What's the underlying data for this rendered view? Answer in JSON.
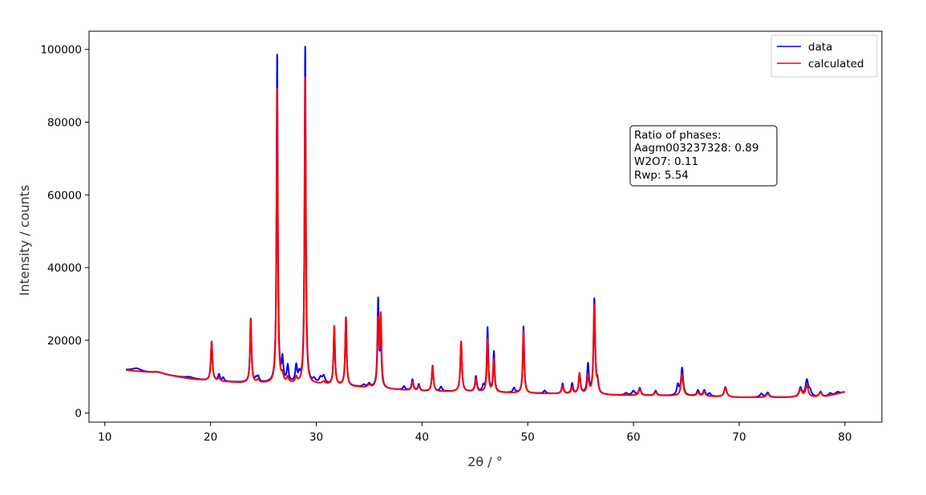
{
  "chart_data": {
    "type": "line",
    "xlabel": "2θ / °",
    "ylabel": "Intensity / counts",
    "xlim": [
      8.5,
      83.5
    ],
    "ylim": [
      -2500,
      105000
    ],
    "xticks": [
      10,
      20,
      30,
      40,
      50,
      60,
      70,
      80
    ],
    "yticks": [
      0,
      20000,
      40000,
      60000,
      80000,
      100000
    ],
    "grid": false,
    "legend": {
      "placement": "top-right"
    },
    "annotation": {
      "placement": "upper-right",
      "lines": [
        "Ratio of phases:",
        "Aagm003237328: 0.89",
        "W2O7: 0.11",
        "Rwp: 5.54"
      ]
    },
    "series": [
      {
        "name": "data",
        "color": "#0000ff",
        "background": [
          [
            12,
            11800
          ],
          [
            15,
            10800
          ],
          [
            18,
            9500
          ],
          [
            20,
            8800
          ],
          [
            23,
            8400
          ],
          [
            26,
            8200
          ],
          [
            30,
            8000
          ],
          [
            33,
            7400
          ],
          [
            36,
            6700
          ],
          [
            40,
            6000
          ],
          [
            45,
            5800
          ],
          [
            50,
            5400
          ],
          [
            55,
            5200
          ],
          [
            58,
            4900
          ],
          [
            62,
            4800
          ],
          [
            66,
            4700
          ],
          [
            70,
            4300
          ],
          [
            74,
            4300
          ],
          [
            78,
            4400
          ],
          [
            80,
            5800
          ]
        ],
        "peaks": [
          [
            13,
            800,
            0.5
          ],
          [
            15,
            400,
            0.6
          ],
          [
            18,
            400,
            0.4
          ],
          [
            20.1,
            10800,
            0.09
          ],
          [
            20.8,
            1800,
            0.1
          ],
          [
            21.2,
            1000,
            0.1
          ],
          [
            23.8,
            17500,
            0.08
          ],
          [
            24.3,
            900,
            0.1
          ],
          [
            24.5,
            1500,
            0.12
          ],
          [
            26.3,
            90500,
            0.07
          ],
          [
            26.8,
            6000,
            0.09
          ],
          [
            27.3,
            4500,
            0.1
          ],
          [
            28.1,
            4500,
            0.1
          ],
          [
            28.4,
            2000,
            0.1
          ],
          [
            28.95,
            92400,
            0.07
          ],
          [
            29.8,
            1000,
            0.15
          ],
          [
            30.4,
            1500,
            0.15
          ],
          [
            30.7,
            2000,
            0.15
          ],
          [
            31.7,
            16000,
            0.08
          ],
          [
            32.8,
            18800,
            0.08
          ],
          [
            34.5,
            600,
            0.15
          ],
          [
            35.0,
            1000,
            0.15
          ],
          [
            35.85,
            23800,
            0.08
          ],
          [
            36.1,
            13000,
            0.08
          ],
          [
            38.3,
            1000,
            0.12
          ],
          [
            39.1,
            3000,
            0.1
          ],
          [
            39.7,
            1800,
            0.1
          ],
          [
            41.0,
            7000,
            0.09
          ],
          [
            41.8,
            1200,
            0.12
          ],
          [
            43.7,
            13700,
            0.09
          ],
          [
            45.1,
            4200,
            0.1
          ],
          [
            45.8,
            1500,
            0.1
          ],
          [
            46.2,
            17600,
            0.08
          ],
          [
            46.8,
            11000,
            0.08
          ],
          [
            48.7,
            1300,
            0.12
          ],
          [
            49.6,
            18400,
            0.08
          ],
          [
            51.6,
            800,
            0.12
          ],
          [
            53.3,
            2800,
            0.1
          ],
          [
            54.2,
            2800,
            0.1
          ],
          [
            54.9,
            5500,
            0.1
          ],
          [
            55.7,
            8000,
            0.1
          ],
          [
            56.3,
            26000,
            0.09
          ],
          [
            56.6,
            3000,
            0.1
          ],
          [
            59.3,
            600,
            0.15
          ],
          [
            60.0,
            1200,
            0.15
          ],
          [
            60.6,
            2000,
            0.12
          ],
          [
            62.1,
            1300,
            0.12
          ],
          [
            64.2,
            2800,
            0.12
          ],
          [
            64.6,
            7500,
            0.12
          ],
          [
            66.1,
            1500,
            0.12
          ],
          [
            66.7,
            1600,
            0.12
          ],
          [
            67.2,
            800,
            0.12
          ],
          [
            68.7,
            2700,
            0.14
          ],
          [
            72.1,
            1000,
            0.15
          ],
          [
            72.7,
            1300,
            0.15
          ],
          [
            75.8,
            2500,
            0.15
          ],
          [
            76.4,
            4500,
            0.15
          ],
          [
            76.7,
            1500,
            0.15
          ],
          [
            77.7,
            1400,
            0.15
          ],
          [
            78.6,
            600,
            0.15
          ],
          [
            79.3,
            500,
            0.15
          ]
        ]
      },
      {
        "name": "calculated",
        "color": "#ff0000",
        "background": [
          [
            12,
            11800
          ],
          [
            15,
            10800
          ],
          [
            18,
            9400
          ],
          [
            20,
            8800
          ],
          [
            23,
            8300
          ],
          [
            26,
            8100
          ],
          [
            30,
            8000
          ],
          [
            33,
            7300
          ],
          [
            36,
            6700
          ],
          [
            40,
            6000
          ],
          [
            45,
            5800
          ],
          [
            50,
            5400
          ],
          [
            55,
            5200
          ],
          [
            58,
            4900
          ],
          [
            62,
            4800
          ],
          [
            66,
            4700
          ],
          [
            70,
            4300
          ],
          [
            74,
            4300
          ],
          [
            78,
            4400
          ],
          [
            80,
            5800
          ]
        ],
        "peaks": [
          [
            15,
            500,
            0.8
          ],
          [
            20.1,
            10700,
            0.09
          ],
          [
            20.8,
            900,
            0.12
          ],
          [
            23.8,
            17500,
            0.08
          ],
          [
            24.5,
            900,
            0.12
          ],
          [
            26.3,
            81500,
            0.07
          ],
          [
            26.8,
            2000,
            0.1
          ],
          [
            27.3,
            1500,
            0.1
          ],
          [
            28.1,
            1500,
            0.1
          ],
          [
            28.95,
            84200,
            0.07
          ],
          [
            30.7,
            700,
            0.15
          ],
          [
            31.7,
            16200,
            0.08
          ],
          [
            32.8,
            18800,
            0.08
          ],
          [
            35.0,
            700,
            0.15
          ],
          [
            35.85,
            18000,
            0.08
          ],
          [
            36.1,
            19500,
            0.08
          ],
          [
            39.1,
            2400,
            0.1
          ],
          [
            39.7,
            1400,
            0.1
          ],
          [
            41.0,
            6800,
            0.09
          ],
          [
            43.7,
            13800,
            0.09
          ],
          [
            45.1,
            3500,
            0.1
          ],
          [
            46.2,
            14500,
            0.08
          ],
          [
            46.8,
            9000,
            0.08
          ],
          [
            49.6,
            17000,
            0.08
          ],
          [
            53.3,
            2200,
            0.1
          ],
          [
            54.2,
            1800,
            0.1
          ],
          [
            54.9,
            5500,
            0.1
          ],
          [
            55.7,
            5000,
            0.1
          ],
          [
            56.3,
            24500,
            0.09
          ],
          [
            56.6,
            2500,
            0.1
          ],
          [
            60.6,
            1800,
            0.12
          ],
          [
            62.1,
            1000,
            0.12
          ],
          [
            64.6,
            6000,
            0.12
          ],
          [
            66.1,
            1000,
            0.12
          ],
          [
            66.7,
            1200,
            0.12
          ],
          [
            68.7,
            2500,
            0.14
          ],
          [
            72.7,
            1000,
            0.15
          ],
          [
            75.8,
            2200,
            0.15
          ],
          [
            76.4,
            3200,
            0.15
          ],
          [
            77.7,
            1300,
            0.15
          ]
        ]
      }
    ]
  }
}
